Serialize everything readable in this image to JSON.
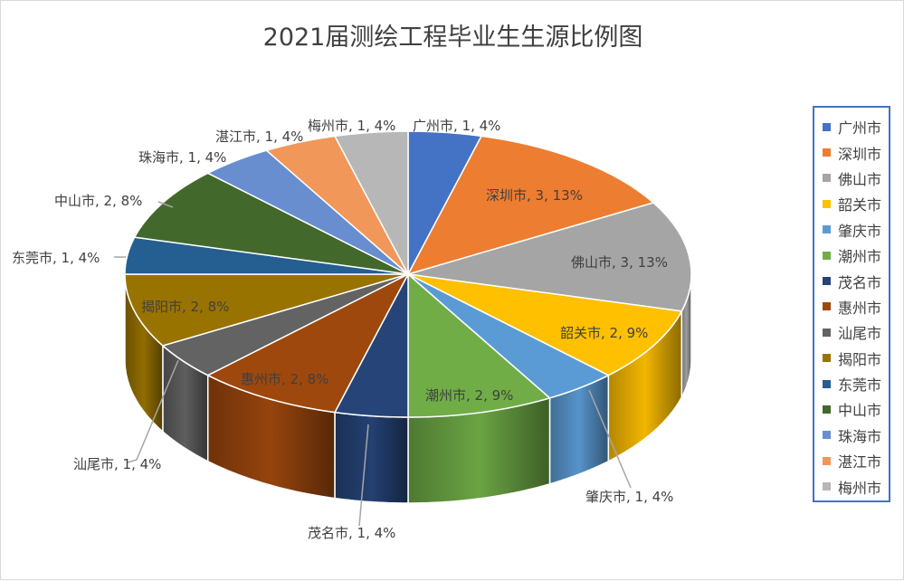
{
  "chart_data": {
    "type": "pie",
    "variant": "3d",
    "title": "2021届测绘工程毕业生生源比例图",
    "legend_position": "right",
    "slices": [
      {
        "name": "广州市",
        "value": 1,
        "percent": 4,
        "label": "广州市, 1, 4%",
        "color": "#4472c4"
      },
      {
        "name": "深圳市",
        "value": 3,
        "percent": 13,
        "label": "深圳市, 3, 13%",
        "color": "#ed7d31"
      },
      {
        "name": "佛山市",
        "value": 3,
        "percent": 13,
        "label": "佛山市, 3, 13%",
        "color": "#a5a5a5"
      },
      {
        "name": "韶关市",
        "value": 2,
        "percent": 9,
        "label": "韶关市, 2, 9%",
        "color": "#ffc000"
      },
      {
        "name": "肇庆市",
        "value": 1,
        "percent": 4,
        "label": "肇庆市, 1, 4%",
        "color": "#5b9bd5"
      },
      {
        "name": "潮州市",
        "value": 2,
        "percent": 9,
        "label": "潮州市, 2, 9%",
        "color": "#70ad47"
      },
      {
        "name": "茂名市",
        "value": 1,
        "percent": 4,
        "label": "茂名市, 1, 4%",
        "color": "#264478"
      },
      {
        "name": "惠州市",
        "value": 2,
        "percent": 8,
        "label": "惠州市, 2, 8%",
        "color": "#9e480e"
      },
      {
        "name": "汕尾市",
        "value": 1,
        "percent": 4,
        "label": "汕尾市, 1, 4%",
        "color": "#636363"
      },
      {
        "name": "揭阳市",
        "value": 2,
        "percent": 8,
        "label": "揭阳市, 2, 8%",
        "color": "#997300"
      },
      {
        "name": "东莞市",
        "value": 1,
        "percent": 4,
        "label": "东莞市, 1, 4%",
        "color": "#255e91"
      },
      {
        "name": "中山市",
        "value": 2,
        "percent": 8,
        "label": "中山市, 2, 8%",
        "color": "#43682b"
      },
      {
        "name": "珠海市",
        "value": 1,
        "percent": 4,
        "label": "珠海市, 1, 4%",
        "color": "#698ed0"
      },
      {
        "name": "湛江市",
        "value": 1,
        "percent": 4,
        "label": "湛江市, 1, 4%",
        "color": "#f1975a"
      },
      {
        "name": "梅州市",
        "value": 1,
        "percent": 4,
        "label": "梅州市, 1, 4%",
        "color": "#b7b7b7"
      }
    ]
  }
}
